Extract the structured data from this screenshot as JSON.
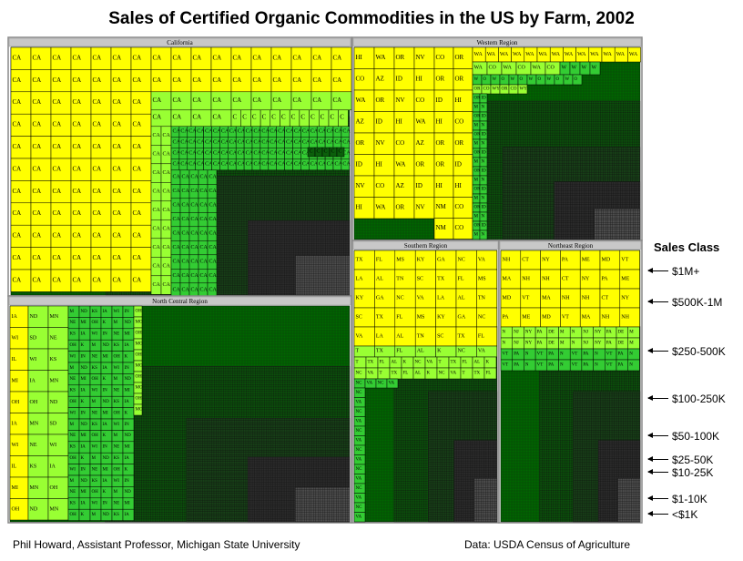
{
  "title": "Sales of Certified Organic Commodities in the US by Farm, 2002",
  "legend_title": "Sales Class",
  "footer_left": "Phil Howard, Assistant Professor, Michigan State University",
  "footer_right": "Data: USDA Census of Agriculture",
  "colors": {
    "class_1M_plus": "#ffff00",
    "class_500K_1M": "#ffff00",
    "class_250_500K": "#99ff33",
    "class_100_250K": "#33cc33",
    "class_50_100K": "#006600",
    "class_25_50K": "#0b4f0b",
    "class_10_25K": "#173f17",
    "class_1_10K": "#2b2b2b",
    "class_under_1K": "#4d4d4d",
    "region_header": "#c8c8c8",
    "region_border": "#888888"
  },
  "chart_data": {
    "type": "treemap",
    "title": "Sales of Certified Organic Commodities in the US by Farm, 2002",
    "legend": {
      "title": "Sales Class",
      "classes": [
        "$1M+",
        "$500K-1M",
        "$250-500K",
        "$100-250K",
        "$50-100K",
        "$25-50K",
        "$10-25K",
        "$1-10K",
        "<$1K"
      ]
    },
    "regions": [
      {
        "name": "California",
        "top_states": [
          "CA"
        ],
        "yellow_labels": [
          "CA"
        ],
        "lightgreen_labels": [
          "CA",
          "C"
        ],
        "green_labels": [
          "CA",
          "C"
        ]
      },
      {
        "name": "Western Region",
        "top_states": [
          "HI",
          "WA",
          "OR",
          "NV",
          "CO",
          "AZ",
          "ID",
          "MT",
          "NM",
          "WY",
          "UT"
        ],
        "yellow_labels": [
          "HI",
          "WA",
          "OR",
          "NV",
          "CO",
          "AZ",
          "ID",
          "WA",
          "HI",
          "MT",
          "AZ",
          "NM",
          "CO"
        ],
        "lightgreen_labels": [
          "WA",
          "CO",
          "OR",
          "WY",
          "OR",
          "CO",
          "W"
        ],
        "green_labels": [
          "W",
          "O",
          "OR",
          "ID",
          "M",
          "N",
          "CO"
        ]
      },
      {
        "name": "Southern Region",
        "top_states": [
          "TX",
          "FL",
          "MS",
          "KY",
          "GA",
          "NC",
          "VA",
          "LA",
          "AL",
          "TN",
          "SC"
        ],
        "yellow_labels": [
          "TX",
          "FL",
          "MS",
          "KY",
          "GA",
          "NC",
          "VA",
          "LA",
          "AL",
          "TN",
          "SC"
        ],
        "lightgreen_labels": [
          "T",
          "TX",
          "FL",
          "AL",
          "K",
          "NC",
          "VA"
        ],
        "green_labels": [
          "NC",
          "VA"
        ]
      },
      {
        "name": "Northeast Region",
        "top_states": [
          "NH",
          "CT",
          "NY",
          "PA",
          "ME",
          "MD",
          "VT",
          "MA",
          "NJ",
          "DE",
          "M"
        ],
        "yellow_labels": [
          "NH",
          "CT",
          "NY",
          "PA",
          "ME",
          "MD",
          "VT",
          "MA",
          "NH"
        ],
        "lightgreen_labels": [
          "N",
          "NJ",
          "NY",
          "PA",
          "DE",
          "M"
        ],
        "green_labels": [
          "VT",
          "PA",
          "N"
        ]
      },
      {
        "name": "North Central Region",
        "top_states": [
          "IA",
          "ND",
          "MN",
          "SD",
          "NE",
          "WI",
          "KS",
          "IL",
          "MI",
          "OH",
          "IN",
          "MO"
        ],
        "yellow_labels": [
          "IA",
          "WI",
          "IL",
          "MI",
          "OH"
        ],
        "lightgreen_labels": [
          "ND",
          "MN",
          "SD",
          "NE",
          "WI",
          "KS",
          "IA",
          "MN",
          "OH"
        ],
        "green_labels": [
          "M",
          "ND",
          "KS",
          "IA",
          "WI",
          "IN",
          "NE",
          "MI",
          "OH",
          "K"
        ]
      }
    ]
  }
}
